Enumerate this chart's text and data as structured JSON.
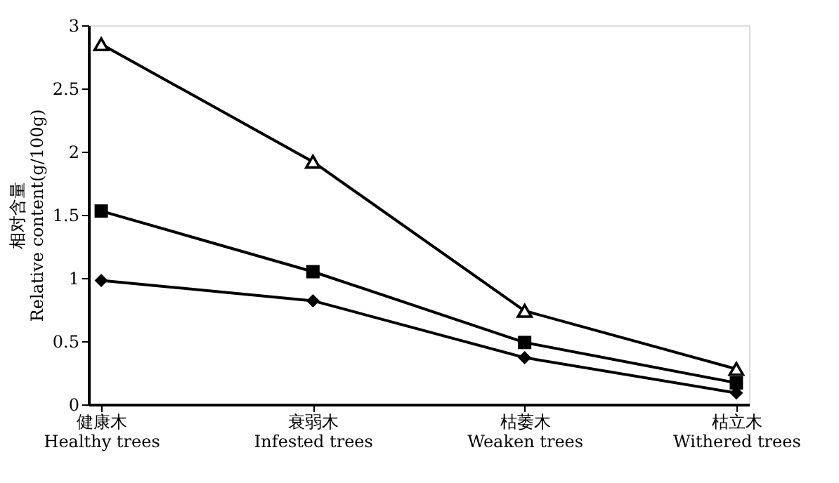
{
  "chart_data": {
    "type": "line",
    "ylabel": "相对含量\nRelative content(g/100g)",
    "categories": [
      "健康木\nHealthy trees",
      "衰弱木\nInfested trees",
      "枯萎木\nWeaken trees",
      "枯立木\nWithered trees"
    ],
    "ylim": [
      0,
      3
    ],
    "yticks": [
      0,
      0.5,
      1,
      1.5,
      2,
      2.5,
      3
    ],
    "grid": false,
    "series": [
      {
        "color": "#000000",
        "marker": "triangle",
        "values": [
          2.85,
          1.92,
          0.74,
          0.28
        ]
      },
      {
        "color": "#000000",
        "marker": "square",
        "values": [
          1.53,
          1.05,
          0.49,
          0.17
        ]
      },
      {
        "color": "#000000",
        "marker": "diamond",
        "values": [
          0.98,
          0.82,
          0.37,
          0.09
        ]
      }
    ]
  }
}
